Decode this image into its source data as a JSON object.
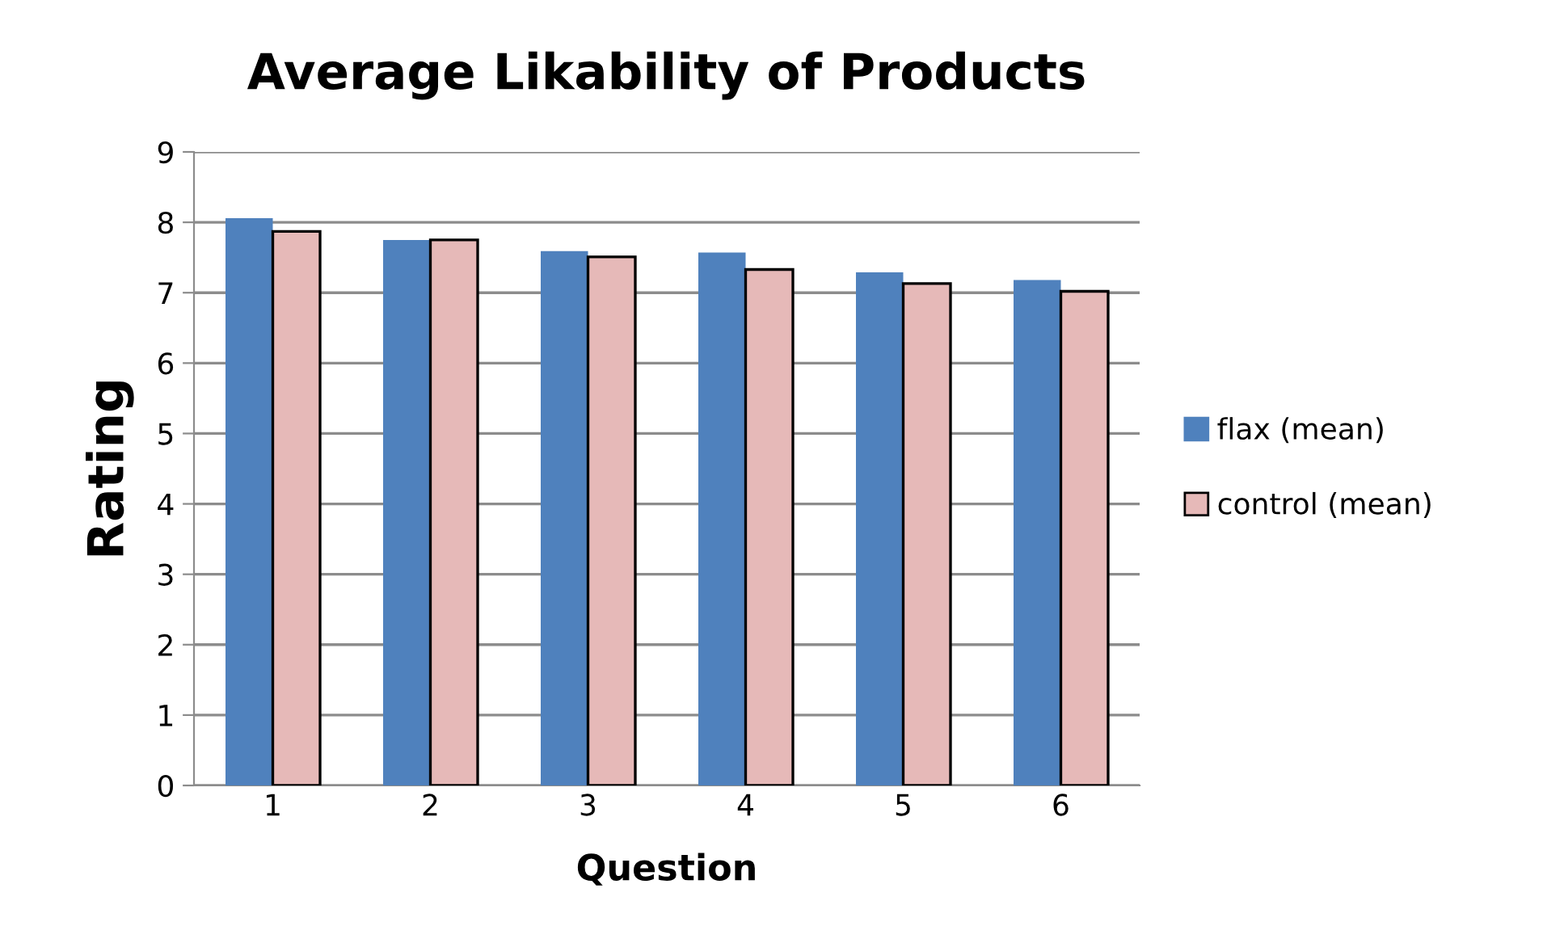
{
  "chart_data": {
    "type": "bar",
    "title": "Average Likability of Products",
    "xlabel": "Question",
    "ylabel": "Rating",
    "categories": [
      "1",
      "2",
      "3",
      "4",
      "5",
      "6"
    ],
    "series": [
      {
        "name": "flax (mean)",
        "color": "#4f81bd",
        "values": [
          8.06,
          7.75,
          7.59,
          7.57,
          7.29,
          7.18
        ]
      },
      {
        "name": "control (mean)",
        "color": "#e6b9b8",
        "values": [
          7.87,
          7.75,
          7.51,
          7.33,
          7.13,
          7.02
        ]
      }
    ],
    "ylim": [
      0,
      9
    ],
    "yticks": [
      0,
      1,
      2,
      3,
      4,
      5,
      6,
      7,
      8,
      9
    ],
    "grid": "y",
    "legend": "right"
  }
}
